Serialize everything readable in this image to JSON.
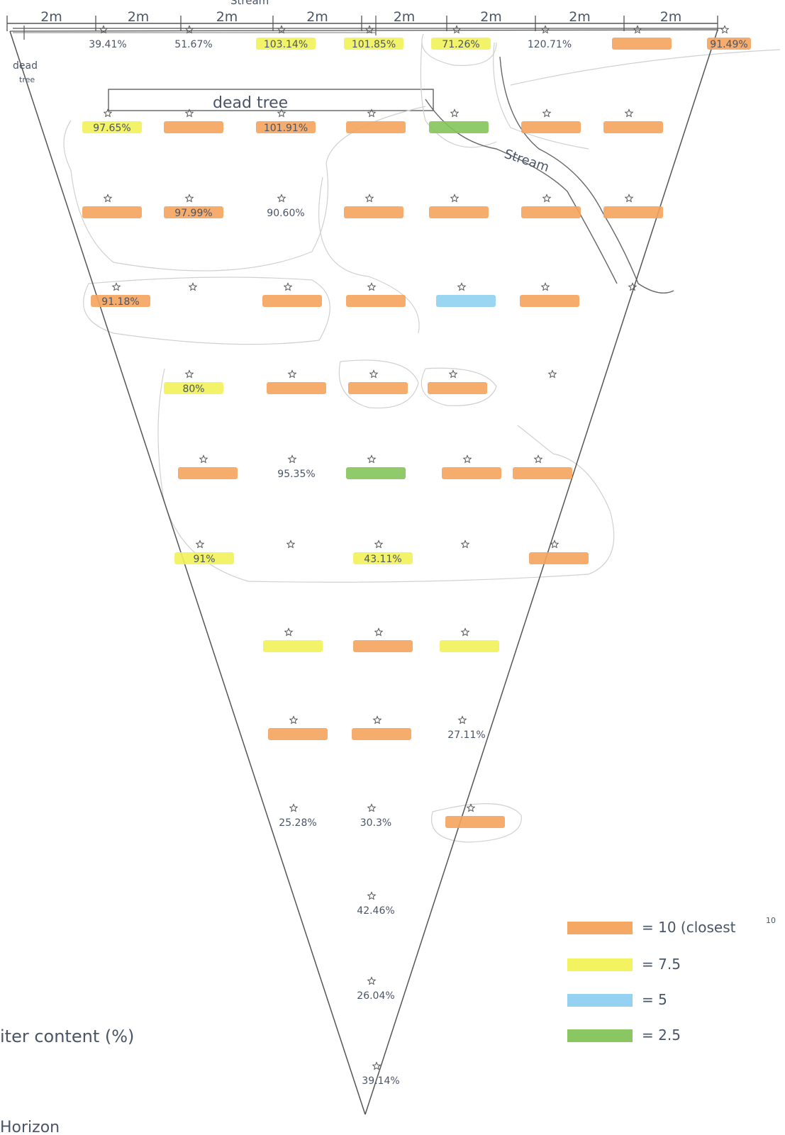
{
  "header": {
    "top_fragment": "Stream",
    "scale_segments": [
      "2m",
      "2m",
      "2m",
      "2m",
      "2m",
      "2m",
      "2m",
      "2m"
    ]
  },
  "dead_tree_left": [
    "dead",
    "tree"
  ],
  "dead_tree_box": "dead tree",
  "stream_label": "Stream",
  "colors": {
    "orange": "#f4a35c",
    "yellow": "#f2f25a",
    "blue": "#8fd0f0",
    "green": "#84c45a",
    "ink": "#4a5568",
    "line": "#555555"
  },
  "rows": [
    [
      {
        "text": "39.41%",
        "hl": ""
      },
      {
        "text": "51.67%",
        "hl": ""
      },
      {
        "text": "103.14%",
        "hl": "yellow"
      },
      {
        "text": "101.85%",
        "hl": "yellow"
      },
      {
        "text": "71.26%",
        "hl": "yellow"
      },
      {
        "text": "120.71%",
        "hl": ""
      },
      {
        "text": "",
        "hl": "orange"
      },
      {
        "text": "91.49%",
        "hl": "orange"
      }
    ],
    [
      {
        "text": "97.65%",
        "hl": "yellow"
      },
      {
        "text": "",
        "hl": "orange"
      },
      {
        "text": "101.91%",
        "hl": "orange"
      },
      {
        "text": "",
        "hl": "orange"
      },
      {
        "text": "",
        "hl": "green"
      },
      {
        "text": "",
        "hl": "orange"
      },
      {
        "text": "",
        "hl": "orange"
      }
    ],
    [
      {
        "text": "",
        "hl": "orange"
      },
      {
        "text": "97.99%",
        "hl": "orange"
      },
      {
        "text": "90.60%",
        "hl": ""
      },
      {
        "text": "",
        "hl": "orange"
      },
      {
        "text": "",
        "hl": "orange"
      },
      {
        "text": "",
        "hl": "orange"
      },
      {
        "text": "",
        "hl": "orange"
      }
    ],
    [
      {
        "text": "91.18%",
        "hl": "orange"
      },
      {
        "text": "",
        "hl": ""
      },
      {
        "text": "",
        "hl": "orange"
      },
      {
        "text": "",
        "hl": "orange"
      },
      {
        "text": "",
        "hl": "blue"
      },
      {
        "text": "",
        "hl": "orange"
      },
      {
        "text": "",
        "hl": ""
      }
    ],
    [
      {
        "text": "80%",
        "hl": "yellow"
      },
      {
        "text": "",
        "hl": "orange"
      },
      {
        "text": "",
        "hl": "orange"
      },
      {
        "text": "",
        "hl": "orange"
      },
      {
        "text": "",
        "hl": ""
      }
    ],
    [
      {
        "text": "",
        "hl": "orange"
      },
      {
        "text": "95.35%",
        "hl": ""
      },
      {
        "text": "",
        "hl": "green"
      },
      {
        "text": "",
        "hl": "orange"
      },
      {
        "text": "",
        "hl": "orange"
      }
    ],
    [
      {
        "text": "91%",
        "hl": "yellow"
      },
      {
        "text": "",
        "hl": ""
      },
      {
        "text": "43.11%",
        "hl": "yellow"
      },
      {
        "text": "",
        "hl": ""
      },
      {
        "text": "",
        "hl": "orange"
      }
    ],
    [
      {
        "text": "",
        "hl": "yellow"
      },
      {
        "text": "",
        "hl": "orange"
      },
      {
        "text": "",
        "hl": "yellow"
      }
    ],
    [
      {
        "text": "",
        "hl": "orange"
      },
      {
        "text": "",
        "hl": "orange"
      },
      {
        "text": "27.11%",
        "hl": ""
      }
    ],
    [
      {
        "text": "25.28%",
        "hl": ""
      },
      {
        "text": "30.3%",
        "hl": ""
      },
      {
        "text": "",
        "hl": "orange"
      }
    ],
    [
      {
        "text": "42.46%",
        "hl": ""
      }
    ],
    [
      {
        "text": "26.04%",
        "hl": ""
      }
    ],
    [
      {
        "text": "39.14%",
        "hl": ""
      }
    ]
  ],
  "legend": [
    {
      "color": "orange",
      "label": "= 10 (closest"
    },
    {
      "color": "yellow",
      "label": "= 7.5"
    },
    {
      "color": "blue",
      "label": "= 5"
    },
    {
      "color": "green",
      "label": "= 2.5"
    }
  ],
  "legend_super": "10",
  "bottom_left": [
    "iter content (%)",
    "Horizon"
  ]
}
